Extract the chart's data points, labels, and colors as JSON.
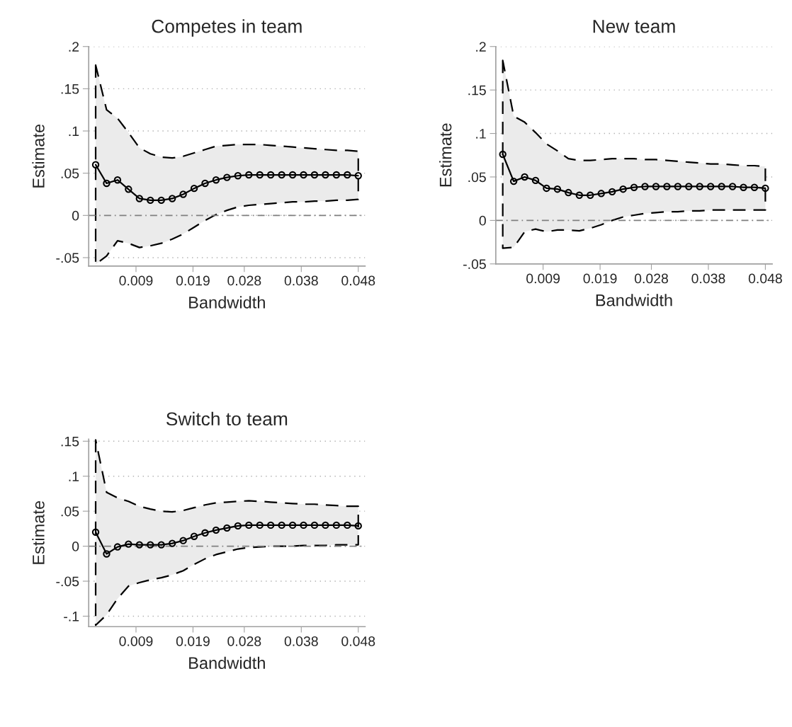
{
  "chart_data": [
    {
      "type": "line",
      "title": "Competes in team",
      "xlabel": "Bandwidth",
      "ylabel": "Estimate",
      "grid": "y",
      "marker": "circle",
      "line_style": "solid",
      "x": [
        0.00192,
        0.00384,
        0.00576,
        0.00768,
        0.0096,
        0.01152,
        0.01344,
        0.01536,
        0.01728,
        0.0192,
        0.02112,
        0.02304,
        0.02496,
        0.02688,
        0.0288,
        0.03072,
        0.03264,
        0.03456,
        0.03648,
        0.0384,
        0.04032,
        0.04224,
        0.04416,
        0.04608,
        0.048
      ],
      "series": [
        {
          "color": "#000000",
          "values": [
            0.06,
            0.038,
            0.042,
            0.031,
            0.02,
            0.018,
            0.018,
            0.02,
            0.025,
            0.032,
            0.038,
            0.042,
            0.045,
            0.047,
            0.048,
            0.048,
            0.048,
            0.048,
            0.048,
            0.048,
            0.048,
            0.048,
            0.048,
            0.048,
            0.047
          ],
          "upper": [
            0.178,
            0.125,
            0.115,
            0.098,
            0.08,
            0.073,
            0.069,
            0.068,
            0.07,
            0.074,
            0.078,
            0.082,
            0.083,
            0.084,
            0.084,
            0.084,
            0.083,
            0.082,
            0.081,
            0.08,
            0.079,
            0.078,
            0.077,
            0.077,
            0.076
          ],
          "lower": [
            -0.058,
            -0.048,
            -0.03,
            -0.033,
            -0.038,
            -0.036,
            -0.033,
            -0.028,
            -0.022,
            -0.014,
            -0.006,
            0.001,
            0.006,
            0.01,
            0.012,
            0.013,
            0.014,
            0.015,
            0.016,
            0.016,
            0.017,
            0.017,
            0.018,
            0.018,
            0.019
          ]
        }
      ],
      "xlim": [
        0.0007,
        0.0492
      ],
      "ylim": [
        -0.06,
        0.2
      ],
      "xticks": [
        0.009,
        0.019,
        0.028,
        0.038,
        0.048
      ],
      "yticks": [
        {
          "value": -0.05,
          "label": "-.05"
        },
        {
          "value": 0,
          "label": "0"
        },
        {
          "value": 0.05,
          "label": ".05"
        },
        {
          "value": 0.1,
          "label": ".1"
        },
        {
          "value": 0.15,
          "label": ".15"
        },
        {
          "value": 0.2,
          "label": ".2"
        }
      ],
      "ref_lines": [
        {
          "axis": "y",
          "value": 0,
          "color": "#808080",
          "line_style": "dashed"
        }
      ]
    },
    {
      "type": "line",
      "title": "New team",
      "xlabel": "Bandwidth",
      "ylabel": "Estimate",
      "grid": "y",
      "marker": "circle",
      "line_style": "solid",
      "x": [
        0.00192,
        0.00384,
        0.00576,
        0.00768,
        0.0096,
        0.01152,
        0.01344,
        0.01536,
        0.01728,
        0.0192,
        0.02112,
        0.02304,
        0.02496,
        0.02688,
        0.0288,
        0.03072,
        0.03264,
        0.03456,
        0.03648,
        0.0384,
        0.04032,
        0.04224,
        0.04416,
        0.04608,
        0.048
      ],
      "series": [
        {
          "color": "#000000",
          "values": [
            0.076,
            0.045,
            0.05,
            0.046,
            0.037,
            0.036,
            0.032,
            0.029,
            0.029,
            0.031,
            0.033,
            0.036,
            0.038,
            0.039,
            0.039,
            0.039,
            0.039,
            0.039,
            0.039,
            0.039,
            0.039,
            0.039,
            0.038,
            0.038,
            0.037
          ],
          "upper": [
            0.184,
            0.12,
            0.113,
            0.101,
            0.088,
            0.08,
            0.071,
            0.069,
            0.069,
            0.07,
            0.071,
            0.071,
            0.071,
            0.07,
            0.07,
            0.069,
            0.068,
            0.067,
            0.066,
            0.065,
            0.065,
            0.064,
            0.063,
            0.063,
            0.062
          ],
          "lower": [
            -0.032,
            -0.031,
            -0.013,
            -0.01,
            -0.013,
            -0.011,
            -0.011,
            -0.012,
            -0.009,
            -0.005,
            0.0,
            0.004,
            0.006,
            0.008,
            0.009,
            0.01,
            0.01,
            0.011,
            0.011,
            0.012,
            0.012,
            0.012,
            0.012,
            0.012,
            0.012
          ]
        }
      ],
      "xlim": [
        0.0007,
        0.0492
      ],
      "ylim": [
        -0.05,
        0.2
      ],
      "xticks": [
        0.009,
        0.019,
        0.028,
        0.038,
        0.048
      ],
      "yticks": [
        {
          "value": -0.05,
          "label": "-.05"
        },
        {
          "value": 0,
          "label": "0"
        },
        {
          "value": 0.05,
          "label": ".05"
        },
        {
          "value": 0.1,
          "label": ".1"
        },
        {
          "value": 0.15,
          "label": ".15"
        },
        {
          "value": 0.2,
          "label": ".2"
        }
      ],
      "ref_lines": [
        {
          "axis": "y",
          "value": 0,
          "color": "#808080",
          "line_style": "dashed"
        }
      ]
    },
    {
      "type": "line",
      "title": "Switch to team",
      "xlabel": "Bandwidth",
      "ylabel": "Estimate",
      "grid": "y",
      "marker": "circle",
      "line_style": "solid",
      "x": [
        0.00192,
        0.00384,
        0.00576,
        0.00768,
        0.0096,
        0.01152,
        0.01344,
        0.01536,
        0.01728,
        0.0192,
        0.02112,
        0.02304,
        0.02496,
        0.02688,
        0.0288,
        0.03072,
        0.03264,
        0.03456,
        0.03648,
        0.0384,
        0.04032,
        0.04224,
        0.04416,
        0.04608,
        0.048
      ],
      "series": [
        {
          "color": "#000000",
          "values": [
            0.02,
            -0.011,
            -0.001,
            0.003,
            0.002,
            0.002,
            0.002,
            0.004,
            0.008,
            0.014,
            0.019,
            0.023,
            0.026,
            0.029,
            0.03,
            0.03,
            0.03,
            0.03,
            0.03,
            0.03,
            0.03,
            0.03,
            0.03,
            0.03,
            0.029
          ],
          "upper": [
            0.152,
            0.077,
            0.069,
            0.064,
            0.057,
            0.053,
            0.05,
            0.049,
            0.051,
            0.055,
            0.059,
            0.062,
            0.063,
            0.064,
            0.065,
            0.064,
            0.063,
            0.062,
            0.061,
            0.06,
            0.06,
            0.059,
            0.058,
            0.057,
            0.057
          ],
          "lower": [
            -0.113,
            -0.098,
            -0.075,
            -0.057,
            -0.052,
            -0.048,
            -0.045,
            -0.041,
            -0.035,
            -0.026,
            -0.018,
            -0.012,
            -0.008,
            -0.004,
            -0.002,
            -0.001,
            0.0,
            0.0,
            0.0,
            0.001,
            0.001,
            0.001,
            0.002,
            0.002,
            0.002
          ]
        }
      ],
      "xlim": [
        0.0007,
        0.0492
      ],
      "ylim": [
        -0.115,
        0.153
      ],
      "xticks": [
        0.009,
        0.019,
        0.028,
        0.038,
        0.048
      ],
      "yticks": [
        {
          "value": -0.1,
          "label": "-.1"
        },
        {
          "value": -0.05,
          "label": "-.05"
        },
        {
          "value": 0,
          "label": "0"
        },
        {
          "value": 0.05,
          "label": ".05"
        },
        {
          "value": 0.1,
          "label": ".1"
        },
        {
          "value": 0.15,
          "label": ".15"
        }
      ],
      "ref_lines": [
        {
          "axis": "y",
          "value": 0,
          "color": "#808080",
          "line_style": "dashed"
        }
      ]
    }
  ]
}
